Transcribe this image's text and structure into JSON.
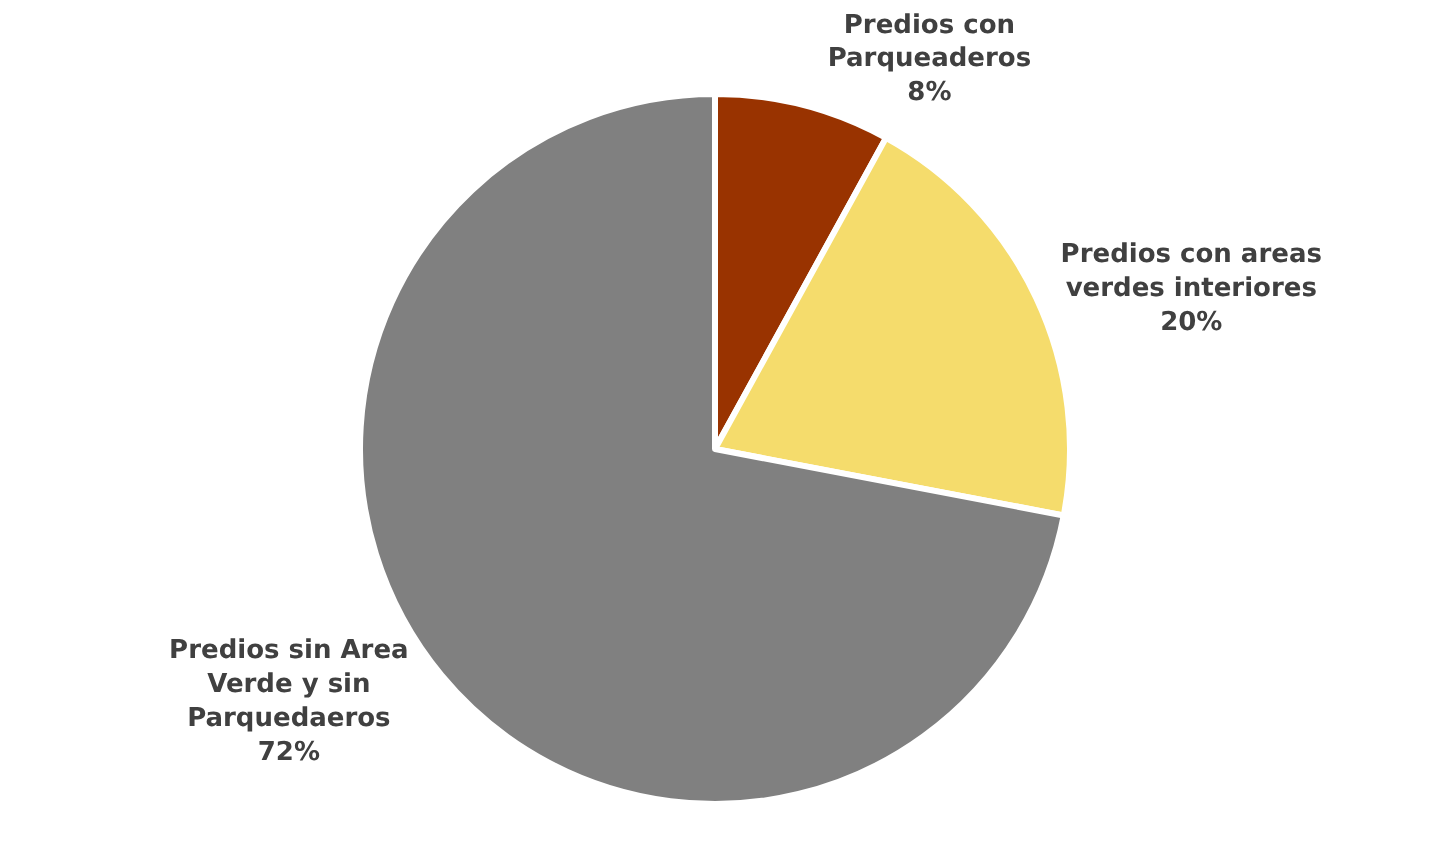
{
  "chart_data": {
    "type": "pie",
    "categories": [
      "Predios con Parqueaderos",
      "Predios con areas verdes interiores",
      "Predios sin Area Verde y sin Parquedaeros"
    ],
    "values": [
      8,
      20,
      72
    ],
    "colors": [
      "#993300",
      "#f5dc6c",
      "#808080"
    ],
    "value_labels": [
      "8%",
      "20%",
      "72%"
    ],
    "legend": false
  }
}
